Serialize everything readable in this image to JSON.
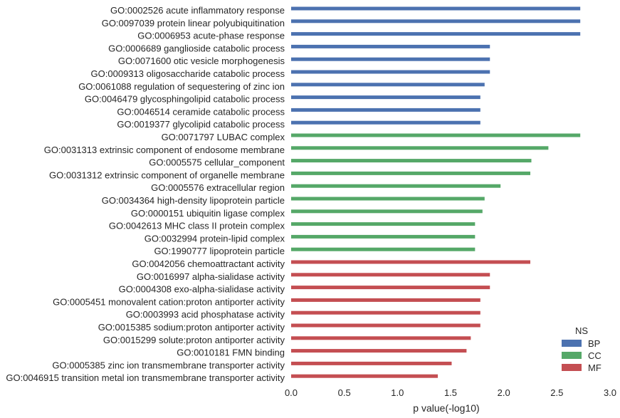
{
  "chart_data": {
    "type": "bar",
    "orientation": "horizontal",
    "xlabel": "p value(-log10)",
    "xlim": [
      0.0,
      3.0
    ],
    "xticks": [
      "0.0",
      "0.5",
      "1.0",
      "1.5",
      "2.0",
      "2.5",
      "3.0"
    ],
    "grid": false,
    "legend": {
      "title": "NS",
      "position": "bottom-right",
      "entries": [
        {
          "label": "BP",
          "color": "#4c72b0"
        },
        {
          "label": "CC",
          "color": "#55a868"
        },
        {
          "label": "MF",
          "color": "#c44e52"
        }
      ]
    },
    "categories": [
      "GO:0002526 acute inflammatory response",
      "GO:0097039 protein linear polyubiquitination",
      "GO:0006953 acute-phase response",
      "GO:0006689 ganglioside catabolic process",
      "GO:0071600 otic vesicle morphogenesis",
      "GO:0009313 oligosaccharide catabolic process",
      "GO:0061088 regulation of sequestering of zinc ion",
      "GO:0046479 glycosphingolipid catabolic process",
      "GO:0046514 ceramide catabolic process",
      "GO:0019377 glycolipid catabolic process",
      "GO:0071797 LUBAC complex",
      "GO:0031313 extrinsic component of endosome membrane",
      "GO:0005575 cellular_component",
      "GO:0031312 extrinsic component of organelle membrane",
      "GO:0005576 extracellular region",
      "GO:0034364 high-density lipoprotein particle",
      "GO:0000151 ubiquitin ligase complex",
      "GO:0042613 MHC class II protein complex",
      "GO:0032994 protein-lipid complex",
      "GO:1990777 lipoprotein particle",
      "GO:0042056 chemoattractant activity",
      "GO:0016997 alpha-sialidase activity",
      "GO:0004308 exo-alpha-sialidase activity",
      "GO:0005451 monovalent cation:proton antiporter activity",
      "GO:0003993 acid phosphatase activity",
      "GO:0015385 sodium:proton antiporter activity",
      "GO:0015299 solute:proton antiporter activity",
      "GO:0010181 FMN binding",
      "GO:0005385 zinc ion transmembrane transporter activity",
      "GO:0046915 transition metal ion transmembrane transporter activity"
    ],
    "ns": [
      "BP",
      "BP",
      "BP",
      "BP",
      "BP",
      "BP",
      "BP",
      "BP",
      "BP",
      "BP",
      "CC",
      "CC",
      "CC",
      "CC",
      "CC",
      "CC",
      "CC",
      "CC",
      "CC",
      "CC",
      "MF",
      "MF",
      "MF",
      "MF",
      "MF",
      "MF",
      "MF",
      "MF",
      "MF",
      "MF"
    ],
    "values": [
      2.72,
      2.72,
      2.72,
      1.87,
      1.87,
      1.87,
      1.82,
      1.78,
      1.78,
      1.78,
      2.72,
      2.42,
      2.26,
      2.25,
      1.97,
      1.82,
      1.8,
      1.73,
      1.73,
      1.73,
      2.25,
      1.87,
      1.87,
      1.78,
      1.78,
      1.78,
      1.69,
      1.65,
      1.51,
      1.38
    ]
  }
}
